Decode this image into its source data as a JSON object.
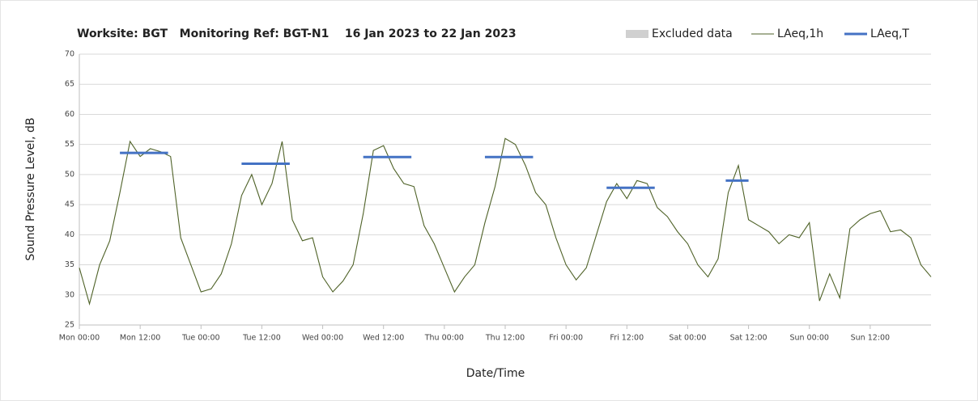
{
  "chart_data": {
    "type": "line",
    "title": "Worksite: BGT   Monitoring Ref: BGT-N1    16 Jan 2023 to 22 Jan 2023",
    "x_label": "Date/Time",
    "y_label": "Sound Pressure Level, dB",
    "excluded_data": {
      "name": "Excluded data",
      "color": "#d0d0d0"
    },
    "xlim": [
      0,
      168
    ],
    "xticks": [
      {
        "value": 0,
        "label": "Mon 00:00"
      },
      {
        "value": 12,
        "label": "Mon 12:00"
      },
      {
        "value": 24,
        "label": "Tue 00:00"
      },
      {
        "value": 36,
        "label": "Tue 12:00"
      },
      {
        "value": 48,
        "label": "Wed 00:00"
      },
      {
        "value": 60,
        "label": "Wed 12:00"
      },
      {
        "value": 72,
        "label": "Thu 00:00"
      },
      {
        "value": 84,
        "label": "Thu 12:00"
      },
      {
        "value": 96,
        "label": "Fri 00:00"
      },
      {
        "value": 108,
        "label": "Fri 12:00"
      },
      {
        "value": 120,
        "label": "Sat 00:00"
      },
      {
        "value": 132,
        "label": "Sat 12:00"
      },
      {
        "value": 144,
        "label": "Sun 00:00"
      },
      {
        "value": 156,
        "label": "Sun 12:00"
      }
    ],
    "ylim": [
      25,
      70
    ],
    "yticks": [
      25,
      30,
      35,
      40,
      45,
      50,
      55,
      60,
      65,
      70
    ],
    "grid": true,
    "series": [
      {
        "name": "LAeq,1h",
        "color": "#4f6228",
        "x": [
          0,
          2,
          4,
          6,
          8,
          10,
          12,
          14,
          16,
          18,
          20,
          22,
          24,
          26,
          28,
          30,
          32,
          34,
          36,
          38,
          40,
          42,
          44,
          46,
          48,
          50,
          52,
          54,
          56,
          58,
          60,
          62,
          64,
          66,
          68,
          70,
          72,
          74,
          76,
          78,
          80,
          82,
          84,
          86,
          88,
          90,
          92,
          94,
          96,
          98,
          100,
          102,
          104,
          106,
          108,
          110,
          112,
          114,
          116,
          118,
          120,
          122,
          124,
          126,
          128,
          130,
          132,
          134,
          136,
          138,
          140,
          142,
          144,
          146,
          148,
          150,
          152,
          154,
          156,
          158,
          160,
          162,
          164,
          166,
          168
        ],
        "values": [
          34.5,
          28.5,
          35,
          39,
          47,
          55.5,
          53,
          54.3,
          53.8,
          53,
          39.5,
          35,
          30.5,
          31,
          33.5,
          38.5,
          46.5,
          50,
          45,
          48.5,
          55.5,
          42.5,
          39,
          39.5,
          33,
          30.5,
          32.3,
          35,
          43.5,
          54,
          54.8,
          51,
          48.5,
          48,
          41.5,
          38.5,
          34.5,
          30.5,
          33,
          35,
          42,
          48,
          56,
          55,
          51.5,
          47,
          45,
          39.5,
          35,
          32.5,
          34.5,
          40,
          45.5,
          48.5,
          46,
          49,
          48.5,
          44.5,
          43,
          40.5,
          38.5,
          35,
          33,
          36,
          47,
          51.5,
          42.5,
          41.5,
          40.5,
          38.5,
          40,
          39.5,
          42,
          29,
          33.5,
          29.5,
          41,
          42.5,
          43.5,
          44,
          40.5,
          40.8,
          39.5,
          35,
          33
        ]
      },
      {
        "name": "LAeq,T",
        "color": "#4472c4",
        "segments": [
          {
            "x": [
              8,
              17.5
            ],
            "value": 53.6
          },
          {
            "x": [
              32,
              41.5
            ],
            "value": 51.8
          },
          {
            "x": [
              56,
              65.5
            ],
            "value": 52.9
          },
          {
            "x": [
              80,
              89.5
            ],
            "value": 52.9
          },
          {
            "x": [
              104,
              113.5
            ],
            "value": 47.8
          },
          {
            "x": [
              127.5,
              132
            ],
            "value": 49
          }
        ]
      }
    ]
  }
}
